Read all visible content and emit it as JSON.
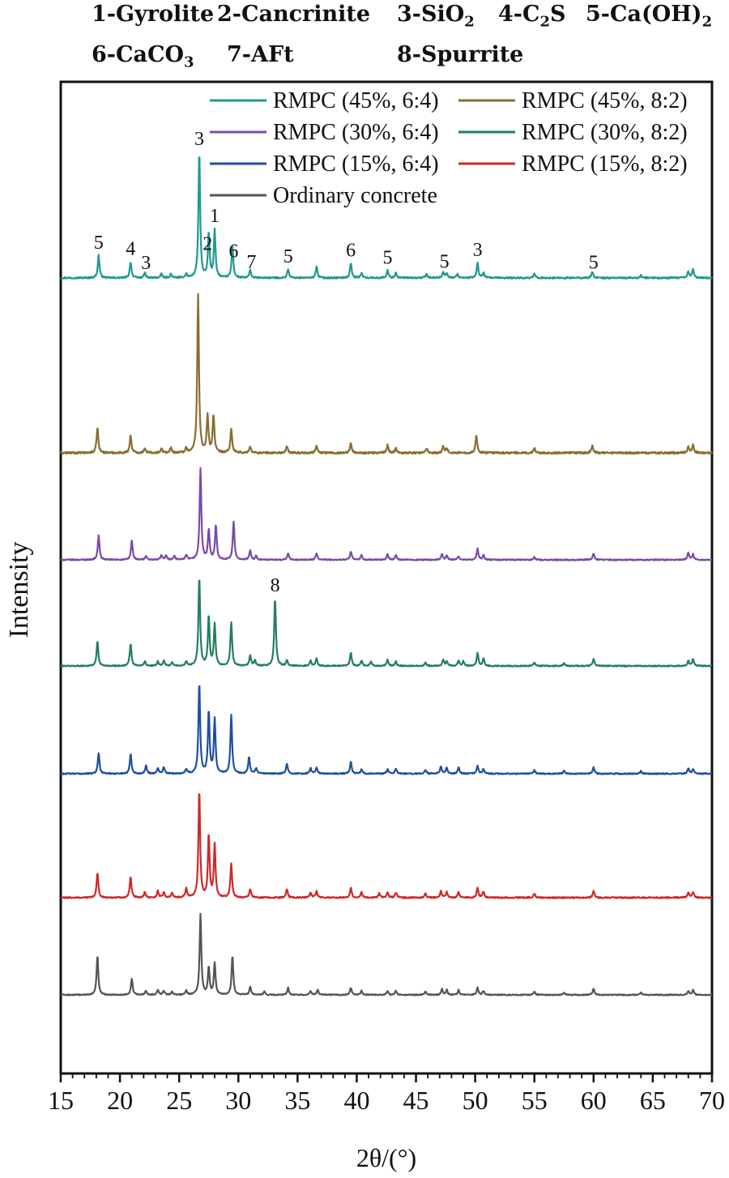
{
  "phases": [
    {
      "key": "1",
      "label": "1-Gyrolite"
    },
    {
      "key": "2",
      "label": "2-Cancrinite"
    },
    {
      "key": "3",
      "label": "3-SiO",
      "sub": "2"
    },
    {
      "key": "4",
      "label": "4-C",
      "sub": "2",
      "tail": "S"
    },
    {
      "key": "5",
      "label": "5-Ca(OH)",
      "sub": "2"
    },
    {
      "key": "6",
      "label": "6-CaCO",
      "sub": "3"
    },
    {
      "key": "7",
      "label": "7-AFt"
    },
    {
      "key": "8",
      "label": "8-Spurrite"
    }
  ],
  "chart_data": {
    "type": "line",
    "title": "",
    "xlabel": "2θ/(°)",
    "ylabel": "Intensity",
    "xlim": [
      15,
      70
    ],
    "xticks": [
      15,
      20,
      25,
      30,
      35,
      40,
      45,
      50,
      55,
      60,
      65,
      70
    ],
    "y_tick_labels": "none",
    "legend_position": "top-right",
    "series": [
      {
        "name": "RMPC (45%, 6:4)",
        "color": "#1e9a8f",
        "peaks": [
          [
            18.2,
            0.18
          ],
          [
            20.9,
            0.13
          ],
          [
            22.1,
            0.04
          ],
          [
            23.5,
            0.03
          ],
          [
            24.3,
            0.03
          ],
          [
            25.6,
            0.03
          ],
          [
            26.7,
            1.0
          ],
          [
            27.5,
            0.35
          ],
          [
            28.0,
            0.38
          ],
          [
            29.5,
            0.26
          ],
          [
            31.0,
            0.06
          ],
          [
            34.2,
            0.07
          ],
          [
            36.6,
            0.09
          ],
          [
            39.5,
            0.12
          ],
          [
            40.4,
            0.04
          ],
          [
            42.6,
            0.06
          ],
          [
            43.3,
            0.04
          ],
          [
            45.9,
            0.03
          ],
          [
            47.3,
            0.05
          ],
          [
            47.6,
            0.04
          ],
          [
            48.5,
            0.03
          ],
          [
            50.2,
            0.12
          ],
          [
            50.7,
            0.04
          ],
          [
            55.0,
            0.03
          ],
          [
            59.9,
            0.05
          ],
          [
            64.0,
            0.02
          ],
          [
            68.0,
            0.05
          ],
          [
            68.4,
            0.07
          ]
        ],
        "peak_labels": [
          {
            "x": 18.2,
            "label": "5"
          },
          {
            "x": 20.9,
            "label": "4"
          },
          {
            "x": 22.2,
            "label": "3"
          },
          {
            "x": 26.7,
            "label": "3"
          },
          {
            "x": 27.4,
            "label": "2"
          },
          {
            "x": 28.0,
            "label": "1"
          },
          {
            "x": 29.6,
            "label": "6"
          },
          {
            "x": 31.1,
            "label": "7"
          },
          {
            "x": 34.2,
            "label": "5"
          },
          {
            "x": 39.5,
            "label": "6"
          },
          {
            "x": 42.6,
            "label": "5"
          },
          {
            "x": 47.4,
            "label": "5"
          },
          {
            "x": 50.2,
            "label": "3"
          },
          {
            "x": 60.0,
            "label": "5"
          }
        ]
      },
      {
        "name": "RMPC (45%, 8:2)",
        "color": "#8a6d2f",
        "peaks": [
          [
            18.1,
            0.16
          ],
          [
            20.9,
            0.11
          ],
          [
            22.1,
            0.03
          ],
          [
            23.5,
            0.03
          ],
          [
            24.3,
            0.03
          ],
          [
            25.6,
            0.03
          ],
          [
            26.6,
            1.0
          ],
          [
            27.4,
            0.23
          ],
          [
            27.9,
            0.24
          ],
          [
            29.4,
            0.15
          ],
          [
            31.0,
            0.04
          ],
          [
            34.1,
            0.04
          ],
          [
            36.6,
            0.05
          ],
          [
            39.5,
            0.06
          ],
          [
            42.6,
            0.05
          ],
          [
            43.3,
            0.03
          ],
          [
            45.9,
            0.03
          ],
          [
            47.3,
            0.04
          ],
          [
            47.6,
            0.03
          ],
          [
            50.1,
            0.11
          ],
          [
            55.0,
            0.03
          ],
          [
            59.9,
            0.05
          ],
          [
            68.0,
            0.04
          ],
          [
            68.4,
            0.05
          ]
        ],
        "peak_labels": []
      },
      {
        "name": "RMPC (30%, 6:4)",
        "color": "#7a4ba8",
        "peaks": [
          [
            18.2,
            0.27
          ],
          [
            21.0,
            0.21
          ],
          [
            22.2,
            0.04
          ],
          [
            23.5,
            0.05
          ],
          [
            23.9,
            0.05
          ],
          [
            24.6,
            0.04
          ],
          [
            25.6,
            0.05
          ],
          [
            26.8,
            1.0
          ],
          [
            27.5,
            0.33
          ],
          [
            28.1,
            0.38
          ],
          [
            29.6,
            0.42
          ],
          [
            31.0,
            0.1
          ],
          [
            31.5,
            0.04
          ],
          [
            34.2,
            0.07
          ],
          [
            36.6,
            0.07
          ],
          [
            39.5,
            0.09
          ],
          [
            40.4,
            0.05
          ],
          [
            42.6,
            0.06
          ],
          [
            43.3,
            0.05
          ],
          [
            47.2,
            0.06
          ],
          [
            47.6,
            0.05
          ],
          [
            48.6,
            0.04
          ],
          [
            50.2,
            0.12
          ],
          [
            50.7,
            0.05
          ],
          [
            55.0,
            0.03
          ],
          [
            60.0,
            0.07
          ],
          [
            68.0,
            0.08
          ],
          [
            68.4,
            0.06
          ]
        ],
        "peak_labels": []
      },
      {
        "name": "RMPC (30%, 8:2)",
        "color": "#23805a",
        "peaks": [
          [
            18.1,
            0.28
          ],
          [
            20.9,
            0.25
          ],
          [
            22.1,
            0.05
          ],
          [
            23.2,
            0.05
          ],
          [
            23.7,
            0.06
          ],
          [
            24.4,
            0.04
          ],
          [
            25.6,
            0.05
          ],
          [
            26.7,
            1.0
          ],
          [
            27.5,
            0.56
          ],
          [
            28.0,
            0.47
          ],
          [
            29.4,
            0.49
          ],
          [
            31.0,
            0.12
          ],
          [
            31.4,
            0.06
          ],
          [
            33.1,
            0.76
          ],
          [
            34.1,
            0.06
          ],
          [
            36.1,
            0.06
          ],
          [
            36.6,
            0.08
          ],
          [
            39.5,
            0.15
          ],
          [
            40.4,
            0.06
          ],
          [
            41.2,
            0.05
          ],
          [
            42.6,
            0.07
          ],
          [
            43.3,
            0.05
          ],
          [
            45.8,
            0.04
          ],
          [
            47.3,
            0.07
          ],
          [
            47.6,
            0.05
          ],
          [
            48.6,
            0.06
          ],
          [
            49.0,
            0.05
          ],
          [
            50.2,
            0.15
          ],
          [
            50.7,
            0.08
          ],
          [
            55.0,
            0.04
          ],
          [
            57.5,
            0.03
          ],
          [
            60.0,
            0.08
          ],
          [
            68.0,
            0.06
          ],
          [
            68.4,
            0.08
          ]
        ],
        "peak_labels": [
          {
            "x": 33.1,
            "label": "8"
          }
        ]
      },
      {
        "name": "RMPC (15%, 6:4)",
        "color": "#1f4fa0",
        "peaks": [
          [
            18.2,
            0.23
          ],
          [
            20.9,
            0.22
          ],
          [
            22.2,
            0.09
          ],
          [
            23.2,
            0.06
          ],
          [
            23.7,
            0.07
          ],
          [
            25.6,
            0.05
          ],
          [
            26.7,
            1.0
          ],
          [
            27.5,
            0.69
          ],
          [
            28.0,
            0.6
          ],
          [
            29.4,
            0.65
          ],
          [
            30.9,
            0.18
          ],
          [
            31.5,
            0.06
          ],
          [
            34.1,
            0.11
          ],
          [
            36.1,
            0.06
          ],
          [
            36.6,
            0.07
          ],
          [
            39.5,
            0.13
          ],
          [
            40.4,
            0.05
          ],
          [
            42.6,
            0.05
          ],
          [
            43.3,
            0.06
          ],
          [
            45.8,
            0.04
          ],
          [
            47.1,
            0.08
          ],
          [
            47.6,
            0.07
          ],
          [
            48.6,
            0.07
          ],
          [
            50.2,
            0.09
          ],
          [
            50.7,
            0.05
          ],
          [
            55.0,
            0.04
          ],
          [
            57.5,
            0.03
          ],
          [
            60.0,
            0.07
          ],
          [
            64.0,
            0.03
          ],
          [
            68.0,
            0.06
          ],
          [
            68.4,
            0.05
          ]
        ],
        "peak_labels": []
      },
      {
        "name": "RMPC (15%, 8:2)",
        "color": "#cc2a2a",
        "peaks": [
          [
            18.1,
            0.23
          ],
          [
            20.9,
            0.19
          ],
          [
            22.1,
            0.05
          ],
          [
            23.2,
            0.06
          ],
          [
            23.7,
            0.05
          ],
          [
            24.4,
            0.04
          ],
          [
            25.6,
            0.08
          ],
          [
            26.7,
            1.0
          ],
          [
            27.5,
            0.58
          ],
          [
            28.0,
            0.49
          ],
          [
            29.4,
            0.31
          ],
          [
            31.0,
            0.08
          ],
          [
            34.1,
            0.08
          ],
          [
            36.1,
            0.05
          ],
          [
            36.6,
            0.06
          ],
          [
            39.5,
            0.09
          ],
          [
            40.4,
            0.05
          ],
          [
            41.9,
            0.04
          ],
          [
            42.6,
            0.05
          ],
          [
            43.3,
            0.05
          ],
          [
            45.8,
            0.04
          ],
          [
            47.1,
            0.06
          ],
          [
            47.6,
            0.05
          ],
          [
            48.6,
            0.05
          ],
          [
            50.2,
            0.09
          ],
          [
            50.7,
            0.06
          ],
          [
            55.0,
            0.04
          ],
          [
            60.0,
            0.06
          ],
          [
            68.0,
            0.05
          ],
          [
            68.4,
            0.05
          ]
        ],
        "peak_labels": []
      },
      {
        "name": "Ordinary concrete",
        "color": "#555555",
        "peaks": [
          [
            18.1,
            0.49
          ],
          [
            21.0,
            0.2
          ],
          [
            22.2,
            0.05
          ],
          [
            23.2,
            0.06
          ],
          [
            23.7,
            0.05
          ],
          [
            24.4,
            0.04
          ],
          [
            25.6,
            0.05
          ],
          [
            26.8,
            1.0
          ],
          [
            27.5,
            0.34
          ],
          [
            28.0,
            0.39
          ],
          [
            29.5,
            0.49
          ],
          [
            31.0,
            0.1
          ],
          [
            32.2,
            0.04
          ],
          [
            34.2,
            0.09
          ],
          [
            36.1,
            0.05
          ],
          [
            36.7,
            0.06
          ],
          [
            39.5,
            0.09
          ],
          [
            40.4,
            0.05
          ],
          [
            42.6,
            0.05
          ],
          [
            43.3,
            0.05
          ],
          [
            45.8,
            0.04
          ],
          [
            47.2,
            0.07
          ],
          [
            47.6,
            0.06
          ],
          [
            48.6,
            0.06
          ],
          [
            50.2,
            0.09
          ],
          [
            50.7,
            0.05
          ],
          [
            55.0,
            0.04
          ],
          [
            57.5,
            0.03
          ],
          [
            60.0,
            0.08
          ],
          [
            64.0,
            0.03
          ],
          [
            68.0,
            0.05
          ],
          [
            68.4,
            0.06
          ]
        ],
        "peak_labels": []
      }
    ]
  }
}
